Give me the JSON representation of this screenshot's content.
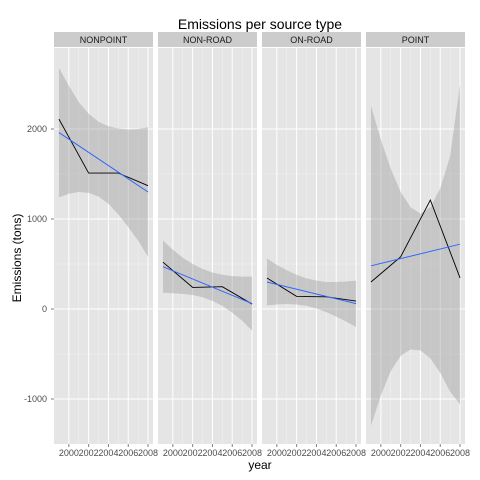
{
  "chart_data": {
    "type": "line",
    "title": "Emissions per source type",
    "xlabel": "year",
    "ylabel": "Emissions (tons)",
    "x_ticks": [
      2000,
      2002,
      2004,
      2006,
      2008
    ],
    "y_ticks": [
      -1000,
      0,
      1000,
      2000
    ],
    "xlim": [
      1998.5,
      2008.5
    ],
    "ylim": [
      -1500,
      2900
    ],
    "grid": true,
    "legend": "none",
    "colors": {
      "observed_line": "#000000",
      "trend_line": "#3366ff",
      "ribbon": "#999999",
      "panel_bg": "#e5e5e5",
      "strip_bg": "#cccccc",
      "grid": "#ffffff"
    },
    "panels": [
      {
        "name": "NONPOINT",
        "observed": [
          {
            "x": 1999,
            "y": 2110
          },
          {
            "x": 2002,
            "y": 1510
          },
          {
            "x": 2005,
            "y": 1510
          },
          {
            "x": 2008,
            "y": 1370
          }
        ],
        "trend": [
          {
            "x": 1999,
            "y": 1960
          },
          {
            "x": 2008,
            "y": 1300
          }
        ],
        "ribbon_upper": [
          {
            "x": 1999,
            "y": 2680
          },
          {
            "x": 2000,
            "y": 2480
          },
          {
            "x": 2001,
            "y": 2300
          },
          {
            "x": 2002,
            "y": 2170
          },
          {
            "x": 2003,
            "y": 2080
          },
          {
            "x": 2004,
            "y": 2030
          },
          {
            "x": 2005,
            "y": 2005
          },
          {
            "x": 2006,
            "y": 1995
          },
          {
            "x": 2007,
            "y": 2000
          },
          {
            "x": 2008,
            "y": 2020
          }
        ],
        "ribbon_lower": [
          {
            "x": 1999,
            "y": 1240
          },
          {
            "x": 2000,
            "y": 1280
          },
          {
            "x": 2001,
            "y": 1300
          },
          {
            "x": 2002,
            "y": 1290
          },
          {
            "x": 2003,
            "y": 1250
          },
          {
            "x": 2004,
            "y": 1170
          },
          {
            "x": 2005,
            "y": 1050
          },
          {
            "x": 2006,
            "y": 910
          },
          {
            "x": 2007,
            "y": 760
          },
          {
            "x": 2008,
            "y": 580
          }
        ]
      },
      {
        "name": "NON-ROAD",
        "observed": [
          {
            "x": 1999,
            "y": 520
          },
          {
            "x": 2002,
            "y": 240
          },
          {
            "x": 2005,
            "y": 248
          },
          {
            "x": 2008,
            "y": 55
          }
        ],
        "trend": [
          {
            "x": 1999,
            "y": 470
          },
          {
            "x": 2008,
            "y": 60
          }
        ],
        "ribbon_upper": [
          {
            "x": 1999,
            "y": 760
          },
          {
            "x": 2000,
            "y": 660
          },
          {
            "x": 2001,
            "y": 570
          },
          {
            "x": 2002,
            "y": 500
          },
          {
            "x": 2003,
            "y": 445
          },
          {
            "x": 2004,
            "y": 405
          },
          {
            "x": 2005,
            "y": 380
          },
          {
            "x": 2006,
            "y": 365
          },
          {
            "x": 2007,
            "y": 360
          },
          {
            "x": 2008,
            "y": 360
          }
        ],
        "ribbon_lower": [
          {
            "x": 1999,
            "y": 180
          },
          {
            "x": 2000,
            "y": 175
          },
          {
            "x": 2001,
            "y": 168
          },
          {
            "x": 2002,
            "y": 155
          },
          {
            "x": 2003,
            "y": 130
          },
          {
            "x": 2004,
            "y": 90
          },
          {
            "x": 2005,
            "y": 35
          },
          {
            "x": 2006,
            "y": -40
          },
          {
            "x": 2007,
            "y": -130
          },
          {
            "x": 2008,
            "y": -240
          }
        ]
      },
      {
        "name": "ON-ROAD",
        "observed": [
          {
            "x": 1999,
            "y": 345
          },
          {
            "x": 2002,
            "y": 140
          },
          {
            "x": 2005,
            "y": 135
          },
          {
            "x": 2008,
            "y": 88
          }
        ],
        "trend": [
          {
            "x": 1999,
            "y": 300
          },
          {
            "x": 2008,
            "y": 60
          }
        ],
        "ribbon_upper": [
          {
            "x": 1999,
            "y": 560
          },
          {
            "x": 2000,
            "y": 490
          },
          {
            "x": 2001,
            "y": 430
          },
          {
            "x": 2002,
            "y": 380
          },
          {
            "x": 2003,
            "y": 340
          },
          {
            "x": 2004,
            "y": 315
          },
          {
            "x": 2005,
            "y": 300
          },
          {
            "x": 2006,
            "y": 300
          },
          {
            "x": 2007,
            "y": 305
          },
          {
            "x": 2008,
            "y": 315
          }
        ],
        "ribbon_lower": [
          {
            "x": 1999,
            "y": 40
          },
          {
            "x": 2000,
            "y": 50
          },
          {
            "x": 2001,
            "y": 55
          },
          {
            "x": 2002,
            "y": 50
          },
          {
            "x": 2003,
            "y": 35
          },
          {
            "x": 2004,
            "y": 5
          },
          {
            "x": 2005,
            "y": -35
          },
          {
            "x": 2006,
            "y": -85
          },
          {
            "x": 2007,
            "y": -140
          },
          {
            "x": 2008,
            "y": -200
          }
        ]
      },
      {
        "name": "POINT",
        "observed": [
          {
            "x": 1999,
            "y": 300
          },
          {
            "x": 2002,
            "y": 580
          },
          {
            "x": 2005,
            "y": 1210
          },
          {
            "x": 2008,
            "y": 345
          }
        ],
        "trend": [
          {
            "x": 1999,
            "y": 480
          },
          {
            "x": 2008,
            "y": 720
          }
        ],
        "ribbon_upper": [
          {
            "x": 1999,
            "y": 2260
          },
          {
            "x": 2000,
            "y": 1880
          },
          {
            "x": 2001,
            "y": 1560
          },
          {
            "x": 2002,
            "y": 1300
          },
          {
            "x": 2003,
            "y": 1130
          },
          {
            "x": 2004,
            "y": 1060
          },
          {
            "x": 2005,
            "y": 1130
          },
          {
            "x": 2006,
            "y": 1340
          },
          {
            "x": 2007,
            "y": 1700
          },
          {
            "x": 2008,
            "y": 2500
          }
        ],
        "ribbon_lower": [
          {
            "x": 1999,
            "y": -1300
          },
          {
            "x": 2000,
            "y": -960
          },
          {
            "x": 2001,
            "y": -690
          },
          {
            "x": 2002,
            "y": -520
          },
          {
            "x": 2003,
            "y": -450
          },
          {
            "x": 2004,
            "y": -460
          },
          {
            "x": 2005,
            "y": -550
          },
          {
            "x": 2006,
            "y": -710
          },
          {
            "x": 2007,
            "y": -920
          },
          {
            "x": 2008,
            "y": -1060
          }
        ]
      }
    ]
  }
}
